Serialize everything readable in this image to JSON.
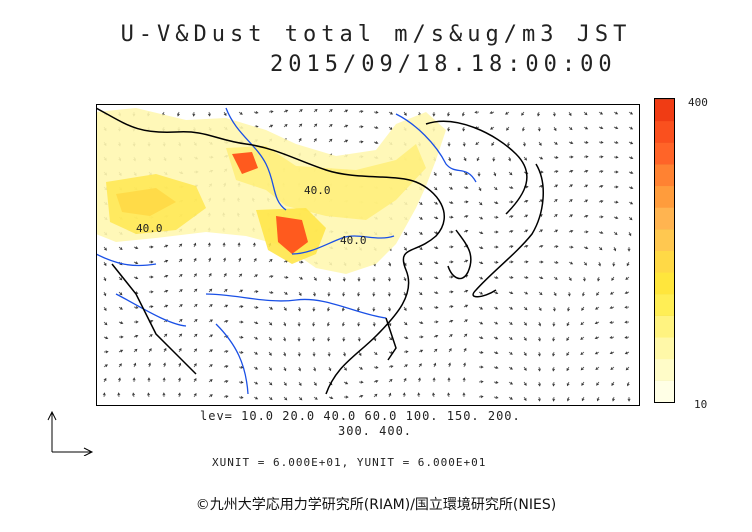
{
  "title": {
    "line1": "U-V&Dust total m/s&ug/m3 JST",
    "line2": "2015/09/18.18:00:00"
  },
  "legend": {
    "max_label": "400",
    "min_label": "10",
    "colors": [
      "#ffffe6",
      "#fffcc8",
      "#fff8a8",
      "#fff380",
      "#ffee55",
      "#ffe63c",
      "#ffd946",
      "#ffc850",
      "#ffb450",
      "#ff9c3c",
      "#ff8232",
      "#ff6428",
      "#fa501e",
      "#f03c14"
    ]
  },
  "levels": {
    "line1": "lev= 10.0 20.0 40.0 60.0 100. 150. 200.",
    "line2": "300. 400."
  },
  "contour_labels": [
    "40.0",
    "40.0",
    "40.0"
  ],
  "units_text": "XUNIT = 6.000E+01, YUNIT = 6.000E+01",
  "copyright": "©九州大学応用力学研究所(RIAM)/国立環境研究所(NIES)",
  "colors": {
    "dust_low": "#fff7b0",
    "dust_mid": "#ffe64a",
    "dust_high": "#ff5a1e",
    "coastline": "#000000",
    "rivers": "#1a50e6"
  }
}
